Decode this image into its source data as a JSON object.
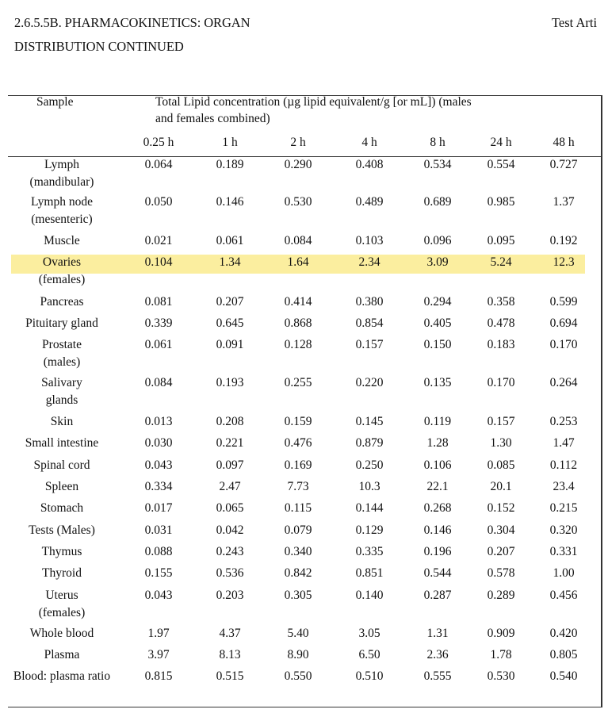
{
  "heading": {
    "line1": "2.6.5.5B. PHARMACOKINETICS: ORGAN",
    "line2": "DISTRIBUTION CONTINUED",
    "right_text": "Test Arti"
  },
  "table": {
    "sample_header": "Sample",
    "measure_header_line1": "Total Lipid concentration (µg lipid equivalent/g [or mL]) (males",
    "measure_header_line2": "and females combined)",
    "timepoints": [
      "0.25 h",
      "1 h",
      "2 h",
      "4 h",
      "8 h",
      "24 h",
      "48 h"
    ],
    "highlight_color": "#fbee9f",
    "rows": [
      {
        "name": [
          "Lymph",
          "(mandibular)"
        ],
        "values": [
          "0.064",
          "0.189",
          "0.290",
          "0.408",
          "0.534",
          "0.554",
          "0.727"
        ]
      },
      {
        "name": [
          "Lymph node",
          "(mesenteric)"
        ],
        "values": [
          "0.050",
          "0.146",
          "0.530",
          "0.489",
          "0.689",
          "0.985",
          "1.37"
        ]
      },
      {
        "name": [
          "Muscle"
        ],
        "values": [
          "0.021",
          "0.061",
          "0.084",
          "0.103",
          "0.096",
          "0.095",
          "0.192"
        ]
      },
      {
        "name": [
          "Ovaries",
          "(females)"
        ],
        "values": [
          "0.104",
          "1.34",
          "1.64",
          "2.34",
          "3.09",
          "5.24",
          "12.3"
        ],
        "highlighted": true
      },
      {
        "name": [
          "Pancreas"
        ],
        "values": [
          "0.081",
          "0.207",
          "0.414",
          "0.380",
          "0.294",
          "0.358",
          "0.599"
        ]
      },
      {
        "name": [
          "Pituitary gland"
        ],
        "values": [
          "0.339",
          "0.645",
          "0.868",
          "0.854",
          "0.405",
          "0.478",
          "0.694"
        ]
      },
      {
        "name": [
          "Prostate",
          "(males)"
        ],
        "values": [
          "0.061",
          "0.091",
          "0.128",
          "0.157",
          "0.150",
          "0.183",
          "0.170"
        ]
      },
      {
        "name": [
          "Salivary",
          "glands"
        ],
        "values": [
          "0.084",
          "0.193",
          "0.255",
          "0.220",
          "0.135",
          "0.170",
          "0.264"
        ]
      },
      {
        "name": [
          "Skin"
        ],
        "values": [
          "0.013",
          "0.208",
          "0.159",
          "0.145",
          "0.119",
          "0.157",
          "0.253"
        ]
      },
      {
        "name": [
          "Small intestine"
        ],
        "values": [
          "0.030",
          "0.221",
          "0.476",
          "0.879",
          "1.28",
          "1.30",
          "1.47"
        ]
      },
      {
        "name": [
          "Spinal cord"
        ],
        "values": [
          "0.043",
          "0.097",
          "0.169",
          "0.250",
          "0.106",
          "0.085",
          "0.112"
        ]
      },
      {
        "name": [
          "Spleen"
        ],
        "values": [
          "0.334",
          "2.47",
          "7.73",
          "10.3",
          "22.1",
          "20.1",
          "23.4"
        ]
      },
      {
        "name": [
          "Stomach"
        ],
        "values": [
          "0.017",
          "0.065",
          "0.115",
          "0.144",
          "0.268",
          "0.152",
          "0.215"
        ]
      },
      {
        "name": [
          "Tests (Males)"
        ],
        "values": [
          "0.031",
          "0.042",
          "0.079",
          "0.129",
          "0.146",
          "0.304",
          "0.320"
        ]
      },
      {
        "name": [
          "Thymus"
        ],
        "values": [
          "0.088",
          "0.243",
          "0.340",
          "0.335",
          "0.196",
          "0.207",
          "0.331"
        ]
      },
      {
        "name": [
          "Thyroid"
        ],
        "values": [
          "0.155",
          "0.536",
          "0.842",
          "0.851",
          "0.544",
          "0.578",
          "1.00"
        ]
      },
      {
        "name": [
          "Uterus",
          "(females)"
        ],
        "values": [
          "0.043",
          "0.203",
          "0.305",
          "0.140",
          "0.287",
          "0.289",
          "0.456"
        ]
      },
      {
        "name": [
          "Whole blood"
        ],
        "values": [
          "1.97",
          "4.37",
          "5.40",
          "3.05",
          "1.31",
          "0.909",
          "0.420"
        ]
      },
      {
        "name": [
          "Plasma"
        ],
        "values": [
          "3.97",
          "8.13",
          "8.90",
          "6.50",
          "2.36",
          "1.78",
          "0.805"
        ]
      },
      {
        "name": [
          "Blood: plasma ratio"
        ],
        "values": [
          "0.815",
          "0.515",
          "0.550",
          "0.510",
          "0.555",
          "0.530",
          "0.540"
        ]
      }
    ]
  }
}
